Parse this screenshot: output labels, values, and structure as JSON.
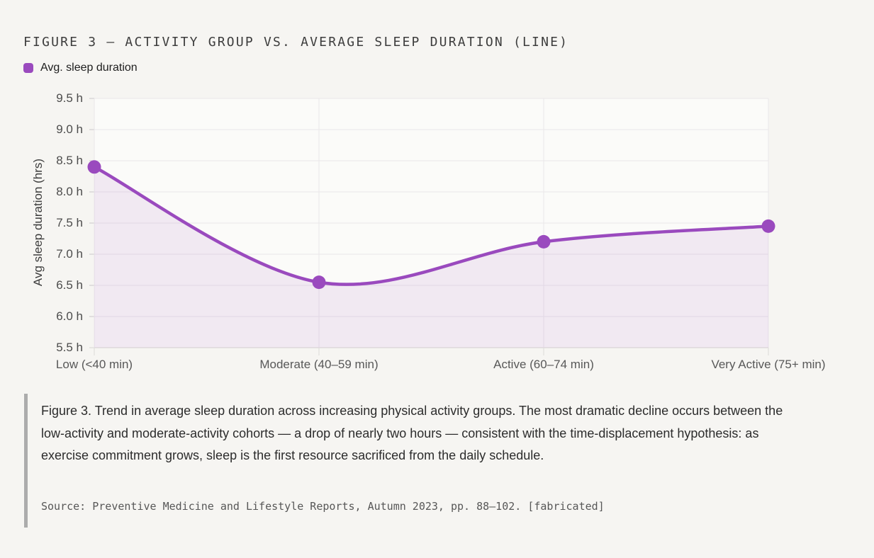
{
  "page": {
    "background": "#f6f5f2"
  },
  "header": {
    "title": "FIGURE 3 — ACTIVITY GROUP VS. AVERAGE SLEEP DURATION (LINE)"
  },
  "legend": {
    "label": "Avg. sleep duration",
    "swatch_color": "#9a4abe"
  },
  "chart_data": {
    "type": "line",
    "categories": [
      "Low (<40 min)",
      "Moderate (40–59 min)",
      "Active (60–74 min)",
      "Very Active (75+ min)"
    ],
    "series": [
      {
        "name": "Avg. sleep duration",
        "values": [
          8.4,
          6.55,
          7.2,
          7.45
        ]
      }
    ],
    "title": "FIGURE 3 — ACTIVITY GROUP VS. AVERAGE SLEEP DURATION (LINE)",
    "xlabel": "",
    "ylabel": "Avg sleep duration (hrs)",
    "ylim": [
      5.5,
      9.5
    ],
    "ytick_step": 0.5,
    "ytick_suffix": " h",
    "grid": true,
    "area_fill": true,
    "smooth_curve": true,
    "legend_position": "top-left",
    "colors": {
      "line": "#9a4abe",
      "point": "#9a4abe",
      "area_fill": "rgba(154,74,190,0.10)",
      "plot_background": "#fbfbf9",
      "gridline": "#e9e7e9",
      "axis_bottom": "#d7d5d2",
      "tick_mark": "#c9c7c9",
      "xtick_mark": "#dcdad8"
    }
  },
  "caption": {
    "text": "Figure 3. Trend in average sleep duration across increasing physical activity groups. The most dramatic decline occurs between the low-activity and moderate-activity cohorts — a drop of nearly two hours — consistent with the time-displacement hypothesis: as exercise commitment grows, sleep is the first resource sacrificed from the daily schedule.",
    "source": "Source: Preventive Medicine and Lifestyle Reports, Autumn 2023, pp. 88–102. [fabricated]"
  }
}
